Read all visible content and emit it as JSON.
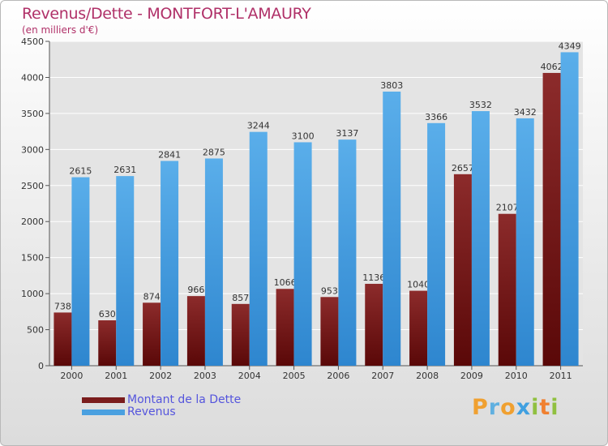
{
  "chart_data": {
    "type": "bar",
    "title": "Revenus/Dette - MONTFORT-L'AMAURY",
    "subtitle": "(en milliers d'€)",
    "categories": [
      "2000",
      "2001",
      "2002",
      "2003",
      "2004",
      "2005",
      "2006",
      "2007",
      "2008",
      "2009",
      "2010",
      "2011"
    ],
    "series": [
      {
        "name": "Montant de la Dette",
        "values": [
          738,
          630,
          874,
          966,
          857,
          1066,
          953,
          1136,
          1040,
          2657,
          2107,
          4062
        ],
        "labels": [
          "738",
          "630",
          "874",
          "966",
          "857",
          "1066",
          "953",
          "1136",
          "1040",
          "2657",
          "2107",
          "4062"
        ],
        "color": "#7a1c1c"
      },
      {
        "name": "Revenus",
        "values": [
          2615,
          2631,
          2841,
          2875,
          3244,
          3100,
          3137,
          3803,
          3366,
          3532,
          3432,
          4349
        ],
        "labels": [
          "2615",
          "2631",
          "2841",
          "2875",
          "3244",
          "3100",
          "3137",
          "3803",
          "3366",
          "3532",
          "3432",
          "4349"
        ],
        "color": "#4aa0e0"
      }
    ],
    "ylim": [
      0,
      4500
    ],
    "yticks": [
      0,
      500,
      1000,
      1500,
      2000,
      2500,
      3000,
      3500,
      4000,
      4500
    ],
    "grid": true,
    "legend_position": "bottom-left"
  },
  "logo": {
    "letters": [
      "P",
      "r",
      "o",
      "x",
      "i",
      "t",
      "i"
    ],
    "colors": [
      "#f0a030",
      "#60b0e0",
      "#f0a030",
      "#40a0e0",
      "#90c040",
      "#f08030",
      "#90c040"
    ]
  }
}
